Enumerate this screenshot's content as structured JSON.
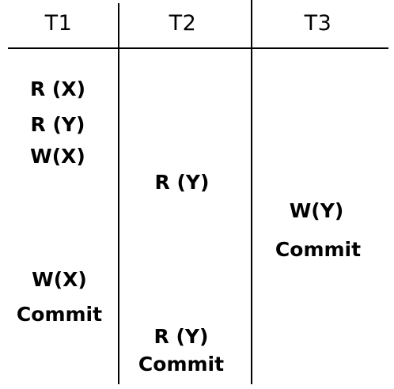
{
  "headers": [
    "T1",
    "T2",
    "T3"
  ],
  "columns": {
    "t1": [
      "R (X)",
      "R (Y)",
      "W(X)",
      "W(X)",
      "Commit"
    ],
    "t2": [
      "R (Y)",
      "R (Y)",
      "Commit"
    ],
    "t3": [
      "W(Y)",
      "Commit"
    ]
  }
}
